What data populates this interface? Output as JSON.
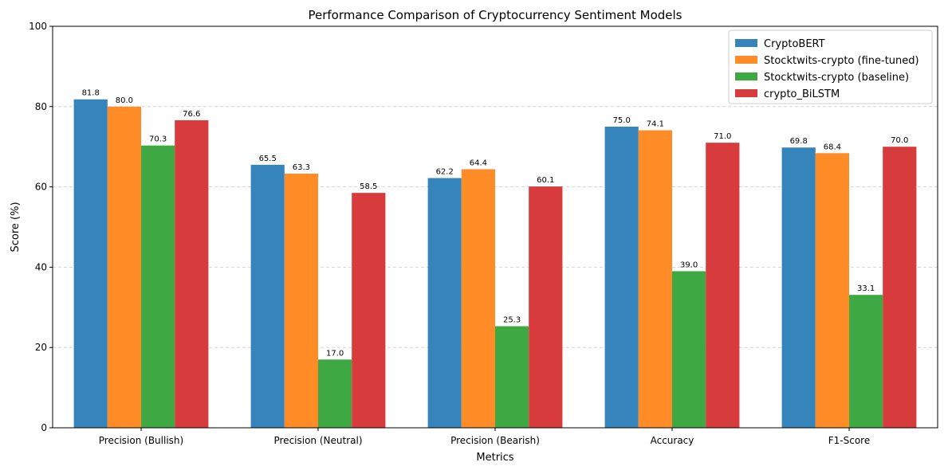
{
  "chart_data": {
    "type": "bar",
    "title": "Performance Comparison of Cryptocurrency Sentiment Models",
    "xlabel": "Metrics",
    "ylabel": "Score (%)",
    "ylim": [
      0,
      100
    ],
    "yticks": [
      0,
      20,
      40,
      60,
      80,
      100
    ],
    "grid": "y dashed",
    "legend_position": "top-right",
    "categories": [
      "Precision (Bullish)",
      "Precision (Neutral)",
      "Precision (Bearish)",
      "Accuracy",
      "F1-Score"
    ],
    "series": [
      {
        "name": "CryptoBERT",
        "color": "#3584bb",
        "values": [
          81.8,
          65.5,
          62.2,
          75.0,
          69.8
        ]
      },
      {
        "name": "Stocktwits-crypto (fine-tuned)",
        "color": "#ff8c27",
        "values": [
          80.0,
          63.3,
          64.4,
          74.1,
          68.4
        ]
      },
      {
        "name": "Stocktwits-crypto (baseline)",
        "color": "#3ea942",
        "values": [
          70.3,
          17.0,
          25.3,
          39.0,
          33.1
        ]
      },
      {
        "name": "crypto_BiLSTM",
        "color": "#d83b3c",
        "values": [
          76.6,
          58.5,
          60.1,
          71.0,
          70.0
        ]
      }
    ]
  }
}
